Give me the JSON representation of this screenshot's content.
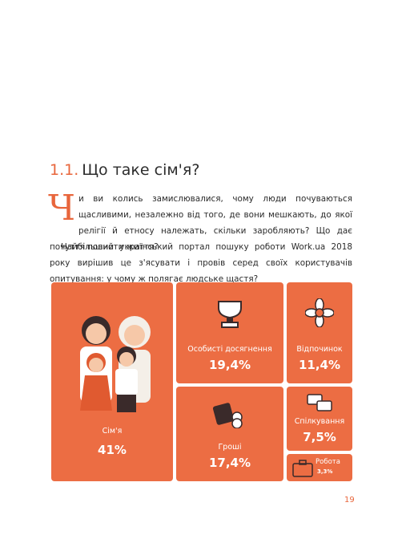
{
  "heading": {
    "number": "1.1.",
    "title": "Що таке сім'я?"
  },
  "paragraphs": [
    {
      "drop_cap": "Ч",
      "text": "и ви колись замислювалися, чому люди почуваються щасливими, незалежно від того, де вони мешкають, до якої релігії й етносу належать, скільки заробляють? Що дає почуття повноти життя?"
    },
    {
      "text": "Найбільший український портал пошуку роботи Work.ua 2018 року вирішив це з'ясувати і провів серед своїх користувачів опитування: у чому ж полягає людське щастя?"
    }
  ],
  "tiles": [
    {
      "label": "Сім'я",
      "value": "41%"
    },
    {
      "label": "Особисті досягнення",
      "value": "19,4%"
    },
    {
      "label": "Відпочинок",
      "value": "11,4%"
    },
    {
      "label": "Гроші",
      "value": "17,4%"
    },
    {
      "label": "Спілкування",
      "value": "7,5%"
    },
    {
      "label": "Робота",
      "value": "3,3%"
    }
  ],
  "page_number": "19"
}
